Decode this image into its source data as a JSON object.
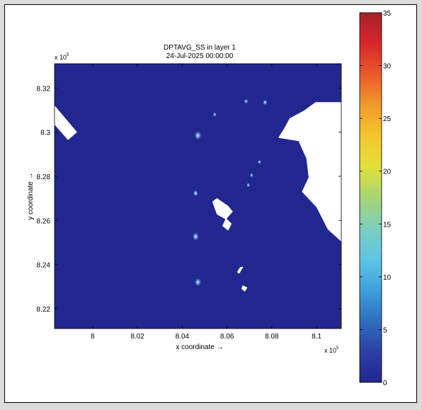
{
  "chart_data": {
    "type": "heatmap",
    "title": "DPTAVG_SS in layer 1",
    "subtitle": "24-Jul-2025 00:00:00",
    "xlabel": "x coordinate →",
    "ylabel": "y coordinate →",
    "x_multiplier": "x 10",
    "y_multiplier": "x 10",
    "multiplier_exponent": "5",
    "xlim": [
      7.983,
      8.111
    ],
    "ylim": [
      8.211,
      8.331
    ],
    "xticks": [
      {
        "value": 8.0,
        "label": "8"
      },
      {
        "value": 8.02,
        "label": "8.02"
      },
      {
        "value": 8.04,
        "label": "8.04"
      },
      {
        "value": 8.06,
        "label": "8.06"
      },
      {
        "value": 8.08,
        "label": "8.08"
      },
      {
        "value": 8.1,
        "label": "8.1"
      }
    ],
    "yticks": [
      {
        "value": 8.22,
        "label": "8.22"
      },
      {
        "value": 8.24,
        "label": "8.24"
      },
      {
        "value": 8.26,
        "label": "8.26"
      },
      {
        "value": 8.28,
        "label": "8.28"
      },
      {
        "value": 8.3,
        "label": "8.3"
      },
      {
        "value": 8.32,
        "label": "8.32"
      }
    ],
    "background_value": 1,
    "colorbar": {
      "clim": [
        0,
        35
      ],
      "ticks": [
        {
          "value": 0,
          "label": "0"
        },
        {
          "value": 5,
          "label": "5"
        },
        {
          "value": 10,
          "label": "10"
        },
        {
          "value": 15,
          "label": "15"
        },
        {
          "value": 20,
          "label": "20"
        },
        {
          "value": 25,
          "label": "25"
        },
        {
          "value": 30,
          "label": "30"
        },
        {
          "value": 35,
          "label": "35"
        }
      ],
      "colors": [
        "#21278f",
        "#2c3fa5",
        "#2f6fc0",
        "#3fa0dc",
        "#5fc5e5",
        "#7ecfbd",
        "#a7d475",
        "#e2e03a",
        "#f5c62d",
        "#f09a2c",
        "#ea5a2b",
        "#d7262a",
        "#a62129"
      ]
    },
    "hotspots": [
      {
        "x": 8.047,
        "y": 8.2985,
        "value": 10
      },
      {
        "x": 8.046,
        "y": 8.2723,
        "value": 6
      },
      {
        "x": 8.046,
        "y": 8.2527,
        "value": 9
      },
      {
        "x": 8.047,
        "y": 8.232,
        "value": 9
      },
      {
        "x": 8.0685,
        "y": 8.314,
        "value": 4
      },
      {
        "x": 8.0545,
        "y": 8.308,
        "value": 3
      },
      {
        "x": 8.077,
        "y": 8.3135,
        "value": 5
      },
      {
        "x": 8.0745,
        "y": 8.2865,
        "value": 3
      },
      {
        "x": 8.071,
        "y": 8.2805,
        "value": 3
      },
      {
        "x": 8.0695,
        "y": 8.276,
        "value": 3
      }
    ],
    "dry_areas": [
      {
        "name": "northwest-land",
        "points": [
          [
            7.983,
            8.312
          ],
          [
            7.993,
            8.3
          ],
          [
            7.989,
            8.2965
          ],
          [
            7.983,
            8.3035
          ]
        ]
      },
      {
        "name": "east-coast-land",
        "points": [
          [
            8.111,
            8.3135
          ],
          [
            8.0995,
            8.3135
          ],
          [
            8.0945,
            8.3098
          ],
          [
            8.088,
            8.3062
          ],
          [
            8.0855,
            8.3015
          ],
          [
            8.083,
            8.2975
          ],
          [
            8.092,
            8.296
          ],
          [
            8.0955,
            8.288
          ],
          [
            8.0965,
            8.2795
          ],
          [
            8.0935,
            8.273
          ],
          [
            8.1,
            8.266
          ],
          [
            8.105,
            8.256
          ],
          [
            8.111,
            8.2505
          ]
        ]
      },
      {
        "name": "island-north",
        "points": [
          [
            8.0555,
            8.27
          ],
          [
            8.0605,
            8.2665
          ],
          [
            8.0625,
            8.264
          ],
          [
            8.0595,
            8.2605
          ],
          [
            8.0555,
            8.2628
          ],
          [
            8.0535,
            8.2685
          ]
        ]
      },
      {
        "name": "island-south",
        "points": [
          [
            8.0595,
            8.261
          ],
          [
            8.062,
            8.2585
          ],
          [
            8.0605,
            8.2555
          ],
          [
            8.058,
            8.2575
          ]
        ]
      },
      {
        "name": "islet-a",
        "points": [
          [
            8.0658,
            8.2387
          ],
          [
            8.0672,
            8.239
          ],
          [
            8.0655,
            8.236
          ],
          [
            8.0645,
            8.2365
          ]
        ]
      },
      {
        "name": "islet-b",
        "points": [
          [
            8.067,
            8.2305
          ],
          [
            8.069,
            8.2296
          ],
          [
            8.068,
            8.2278
          ],
          [
            8.0665,
            8.229
          ]
        ]
      }
    ]
  }
}
